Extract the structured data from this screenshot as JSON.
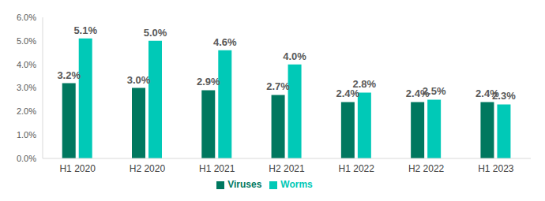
{
  "chart_data": {
    "type": "bar",
    "categories": [
      "H1 2020",
      "H2 2020",
      "H1 2021",
      "H2 2021",
      "H1 2022",
      "H2 2022",
      "H1 2023"
    ],
    "series": [
      {
        "name": "Viruses",
        "color": "#00785f",
        "values": [
          3.2,
          3.0,
          2.9,
          2.7,
          2.4,
          2.4,
          2.4
        ],
        "value_labels": [
          "3.2%",
          "3.0%",
          "2.9%",
          "2.7%",
          "2.4%",
          "2.4%",
          "2.4%"
        ]
      },
      {
        "name": "Worms",
        "color": "#00c9b7",
        "values": [
          5.1,
          5.0,
          4.6,
          4.0,
          2.8,
          2.5,
          2.3
        ],
        "value_labels": [
          "5.1%",
          "5.0%",
          "4.6%",
          "4.0%",
          "2.8%",
          "2.5%",
          "2.3%"
        ]
      }
    ],
    "ylim": [
      0,
      6
    ],
    "yticks": [
      {
        "value": 0,
        "label": "0.0%"
      },
      {
        "value": 1,
        "label": "1.0%"
      },
      {
        "value": 2,
        "label": "2.0%"
      },
      {
        "value": 3,
        "label": "3.0%"
      },
      {
        "value": 4,
        "label": "4.0%"
      },
      {
        "value": 5,
        "label": "5.0%"
      },
      {
        "value": 6,
        "label": "6.0%"
      }
    ],
    "grid": false,
    "legend": "bottom",
    "data_labels": true
  }
}
